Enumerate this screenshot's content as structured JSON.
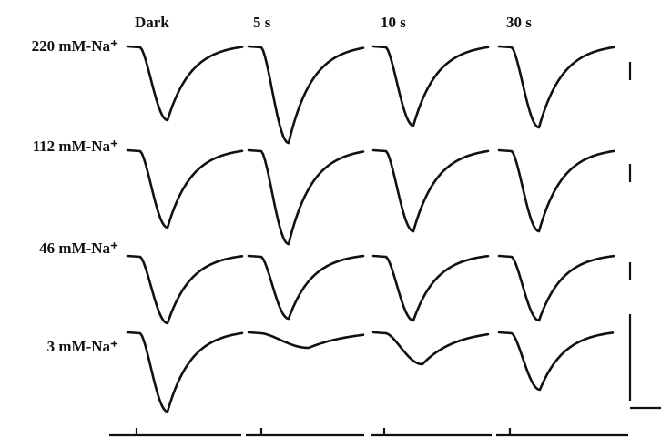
{
  "columns": [
    "Dark",
    "5 s",
    "10 s",
    "30 s"
  ],
  "rows": [
    "220 mM-Na⁺",
    "112 mM-Na⁺",
    "46 mM-Na⁺",
    "3 mM-Na⁺"
  ]
}
